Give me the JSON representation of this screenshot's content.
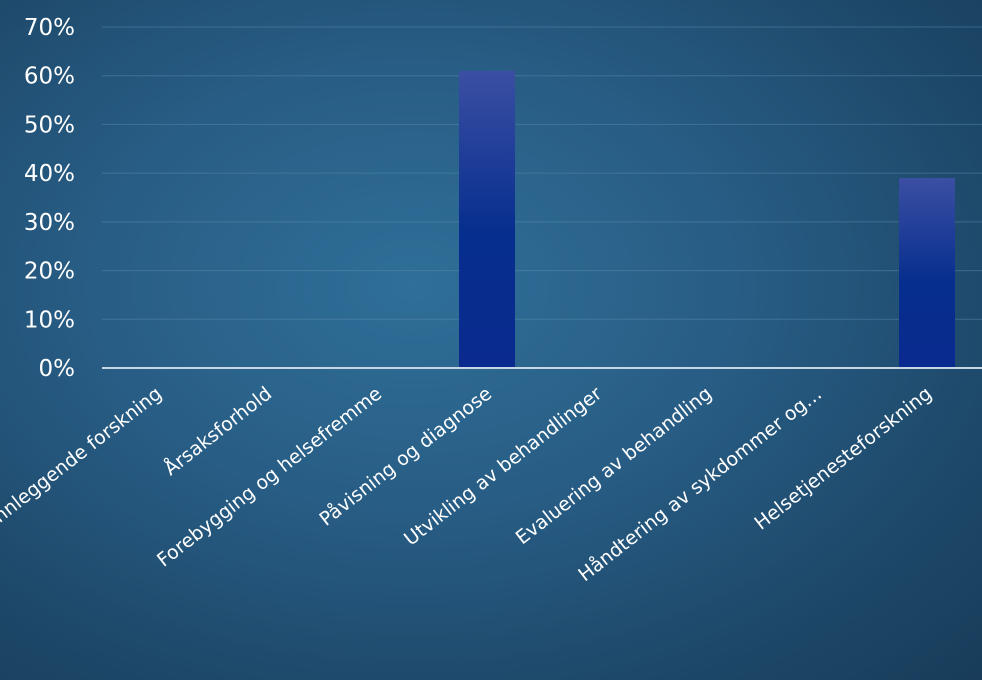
{
  "chart_data": {
    "type": "bar",
    "categories": [
      "Grunnleggende forskning",
      "Årsaksforhold",
      "Forebygging og helsefremme",
      "Påvisning og diagnose",
      "Utvikling av behandlinger",
      "Evaluering av behandling",
      "Håndtering av sykdommer og…",
      "Helsetjenesteforskning"
    ],
    "values": [
      0,
      0,
      0,
      61,
      0,
      0,
      0,
      39
    ],
    "ylim": [
      0,
      70
    ],
    "yticks": [
      0,
      10,
      20,
      30,
      40,
      50,
      60,
      70
    ],
    "yticks_suffix": "%",
    "title": "",
    "xlabel": "",
    "ylabel": "",
    "grid": true,
    "legend": "none",
    "colors": {
      "bar_top": "#3b4fa3",
      "bar_bottom": "#0a2a8f",
      "bar_mid": "#062e8e"
    }
  }
}
